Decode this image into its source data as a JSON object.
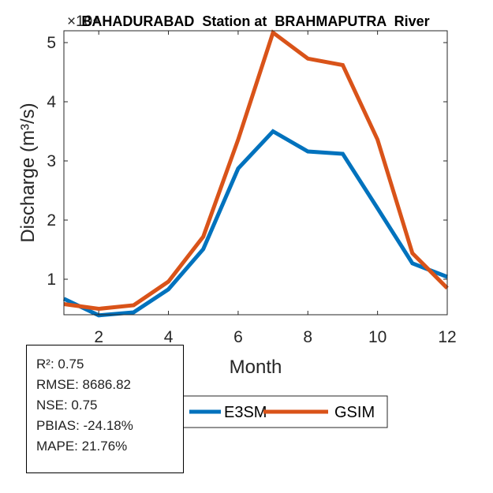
{
  "chart_data": {
    "type": "line",
    "title": "BAHADURABAD  Station at  BRAHMAPUTRA  River",
    "xlabel": "Month",
    "ylabel": "Discharge (m³/s)",
    "y_exponent_label": "×10⁴",
    "xlim": [
      1,
      12
    ],
    "ylim": [
      0.4,
      5.2
    ],
    "y_scale_factor": 10000,
    "x_ticks": [
      2,
      4,
      6,
      8,
      10,
      12
    ],
    "y_ticks": [
      1,
      2,
      3,
      4,
      5
    ],
    "grid": false,
    "legend_position": "bottom",
    "x": [
      1,
      2,
      3,
      4,
      5,
      6,
      7,
      8,
      9,
      10,
      11,
      12
    ],
    "series": [
      {
        "name": "E3SM",
        "color": "#0072BD",
        "values": [
          0.67,
          0.39,
          0.44,
          0.83,
          1.51,
          2.87,
          3.5,
          3.16,
          3.12,
          2.2,
          1.27,
          1.04
        ]
      },
      {
        "name": "GSIM",
        "color": "#D95319",
        "values": [
          0.58,
          0.5,
          0.56,
          0.96,
          1.72,
          3.36,
          5.17,
          4.73,
          4.62,
          3.36,
          1.44,
          0.85
        ]
      }
    ]
  },
  "stats": {
    "lines": [
      "R²: 0.75",
      "RMSE: 8686.82",
      "NSE: 0.75",
      "PBIAS: -24.18%",
      "MAPE: 21.76%"
    ]
  }
}
